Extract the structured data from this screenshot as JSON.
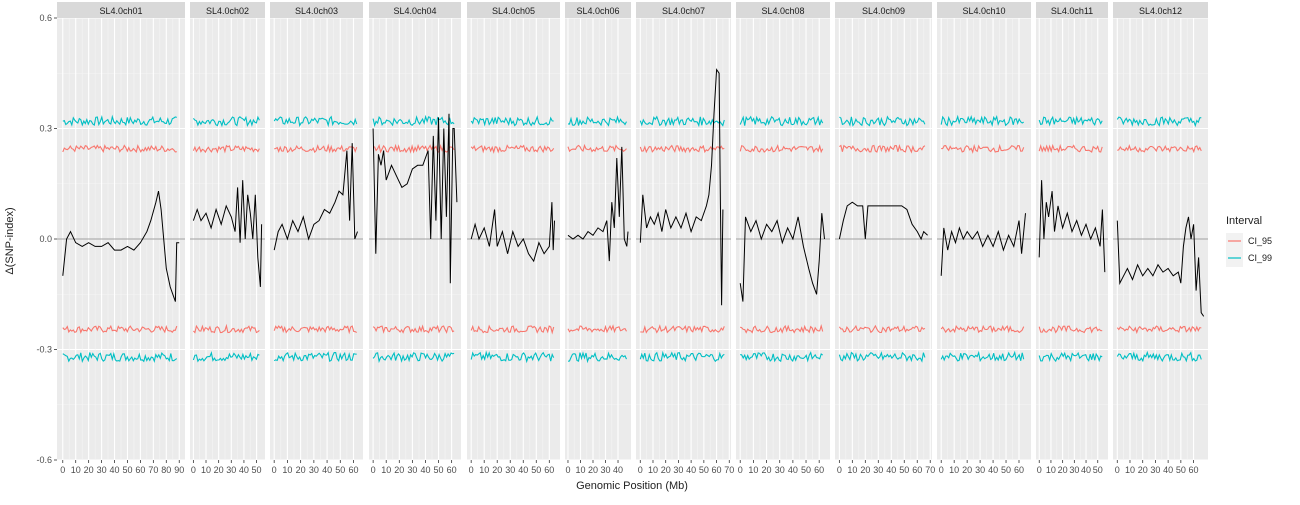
{
  "chart_data": {
    "type": "line",
    "ylabel": "Δ(SNP-index)",
    "xlabel": "Genomic Position (Mb)",
    "ylim": [
      -0.6,
      0.6
    ],
    "yticks": [
      -0.6,
      -0.3,
      0.0,
      0.3,
      0.6
    ],
    "ytick_labels": [
      "-0.6",
      "-0.3",
      "0.0",
      "0.3",
      "0.6"
    ],
    "grid": true,
    "legend": {
      "title": "Interval",
      "placement": "right",
      "items": [
        {
          "name": "CI_95",
          "color": "#F8766D"
        },
        {
          "name": "CI_99",
          "color": "#00BFC4"
        }
      ]
    },
    "colors": {
      "delta": "#000000",
      "ci95": "#F8766D",
      "ci99": "#00BFC4",
      "panel_bg": "#EBEBEB",
      "strip_bg": "#D9D9D9"
    },
    "chromosomes": [
      {
        "name": "SL4.0ch01",
        "length": 90,
        "ticks": [
          0,
          10,
          20,
          30,
          40,
          50,
          60,
          70,
          80,
          90
        ],
        "delta": [
          [
            0,
            -0.1
          ],
          [
            3,
            0.0
          ],
          [
            6,
            0.02
          ],
          [
            10,
            -0.01
          ],
          [
            15,
            -0.02
          ],
          [
            20,
            -0.01
          ],
          [
            25,
            -0.02
          ],
          [
            30,
            -0.02
          ],
          [
            35,
            -0.01
          ],
          [
            40,
            -0.03
          ],
          [
            45,
            -0.03
          ],
          [
            50,
            -0.02
          ],
          [
            55,
            -0.03
          ],
          [
            60,
            -0.01
          ],
          [
            65,
            0.02
          ],
          [
            68,
            0.05
          ],
          [
            72,
            0.1
          ],
          [
            74,
            0.13
          ],
          [
            76,
            0.08
          ],
          [
            78,
            0.0
          ],
          [
            80,
            -0.08
          ],
          [
            83,
            -0.13
          ],
          [
            86,
            -0.16
          ],
          [
            87,
            -0.17
          ],
          [
            88,
            -0.01
          ],
          [
            90,
            -0.01
          ]
        ],
        "ci95": 0.245,
        "ci99": 0.32
      },
      {
        "name": "SL4.0ch02",
        "length": 54,
        "ticks": [
          0,
          10,
          20,
          30,
          40,
          50
        ],
        "delta": [
          [
            0,
            0.05
          ],
          [
            3,
            0.08
          ],
          [
            6,
            0.05
          ],
          [
            10,
            0.07
          ],
          [
            14,
            0.03
          ],
          [
            18,
            0.08
          ],
          [
            22,
            0.04
          ],
          [
            26,
            0.09
          ],
          [
            30,
            0.06
          ],
          [
            33,
            0.02
          ],
          [
            35,
            0.14
          ],
          [
            37,
            -0.01
          ],
          [
            39,
            0.16
          ],
          [
            41,
            0.0
          ],
          [
            43,
            0.12
          ],
          [
            45,
            0.07
          ],
          [
            47,
            0.0
          ],
          [
            49,
            0.12
          ],
          [
            51,
            -0.05
          ],
          [
            53,
            -0.13
          ],
          [
            54,
            0.04
          ]
        ],
        "ci95": 0.245,
        "ci99": 0.32
      },
      {
        "name": "SL4.0ch03",
        "length": 64,
        "ticks": [
          0,
          10,
          20,
          30,
          40,
          50,
          60
        ],
        "delta": [
          [
            0,
            -0.03
          ],
          [
            3,
            0.02
          ],
          [
            6,
            0.04
          ],
          [
            10,
            0.0
          ],
          [
            14,
            0.05
          ],
          [
            18,
            0.02
          ],
          [
            22,
            0.06
          ],
          [
            26,
            0.0
          ],
          [
            30,
            0.04
          ],
          [
            34,
            0.05
          ],
          [
            38,
            0.08
          ],
          [
            42,
            0.07
          ],
          [
            46,
            0.1
          ],
          [
            49,
            0.13
          ],
          [
            52,
            0.12
          ],
          [
            55,
            0.24
          ],
          [
            57,
            0.05
          ],
          [
            59,
            0.26
          ],
          [
            61,
            0.0
          ],
          [
            63,
            0.02
          ]
        ],
        "ci95": 0.245,
        "ci99": 0.32
      },
      {
        "name": "SL4.0ch04",
        "length": 64,
        "ticks": [
          0,
          10,
          20,
          30,
          40,
          50,
          60
        ],
        "delta": [
          [
            0,
            0.3
          ],
          [
            2,
            -0.04
          ],
          [
            4,
            0.23
          ],
          [
            6,
            0.2
          ],
          [
            8,
            0.24
          ],
          [
            10,
            0.16
          ],
          [
            14,
            0.2
          ],
          [
            18,
            0.17
          ],
          [
            22,
            0.14
          ],
          [
            26,
            0.15
          ],
          [
            30,
            0.19
          ],
          [
            34,
            0.2
          ],
          [
            38,
            0.2
          ],
          [
            42,
            0.24
          ],
          [
            44,
            0.0
          ],
          [
            46,
            0.28
          ],
          [
            48,
            0.05
          ],
          [
            50,
            0.33
          ],
          [
            52,
            0.0
          ],
          [
            54,
            0.3
          ],
          [
            56,
            0.06
          ],
          [
            58,
            0.34
          ],
          [
            59,
            -0.12
          ],
          [
            61,
            0.3
          ],
          [
            62,
            0.3
          ],
          [
            64,
            0.1
          ]
        ],
        "ci95": 0.245,
        "ci99": 0.32
      },
      {
        "name": "SL4.0ch05",
        "length": 65,
        "ticks": [
          0,
          10,
          20,
          30,
          40,
          50,
          60
        ],
        "delta": [
          [
            0,
            0.0
          ],
          [
            3,
            0.04
          ],
          [
            6,
            0.0
          ],
          [
            10,
            0.03
          ],
          [
            14,
            -0.02
          ],
          [
            18,
            0.08
          ],
          [
            20,
            -0.02
          ],
          [
            24,
            0.02
          ],
          [
            28,
            -0.04
          ],
          [
            32,
            0.02
          ],
          [
            36,
            -0.02
          ],
          [
            40,
            0.0
          ],
          [
            44,
            -0.04
          ],
          [
            48,
            -0.06
          ],
          [
            52,
            -0.01
          ],
          [
            56,
            -0.04
          ],
          [
            60,
            -0.02
          ],
          [
            62,
            0.1
          ],
          [
            63,
            -0.03
          ],
          [
            64,
            0.05
          ]
        ],
        "ci95": 0.245,
        "ci99": 0.32
      },
      {
        "name": "SL4.0ch06",
        "length": 48,
        "ticks": [
          0,
          10,
          20,
          30,
          40
        ],
        "delta": [
          [
            0,
            0.01
          ],
          [
            4,
            0.0
          ],
          [
            8,
            0.01
          ],
          [
            12,
            0.0
          ],
          [
            16,
            0.02
          ],
          [
            20,
            0.01
          ],
          [
            24,
            0.03
          ],
          [
            28,
            0.02
          ],
          [
            31,
            0.05
          ],
          [
            33,
            -0.06
          ],
          [
            35,
            0.1
          ],
          [
            37,
            0.03
          ],
          [
            39,
            0.22
          ],
          [
            41,
            0.06
          ],
          [
            43,
            0.25
          ],
          [
            45,
            0.0
          ],
          [
            47,
            -0.02
          ],
          [
            48,
            0.02
          ]
        ],
        "ci95": 0.245,
        "ci99": 0.32
      },
      {
        "name": "SL4.0ch07",
        "length": 68,
        "ticks": [
          0,
          10,
          20,
          30,
          40,
          50,
          60,
          70
        ],
        "delta": [
          [
            0,
            -0.01
          ],
          [
            2,
            0.12
          ],
          [
            5,
            0.03
          ],
          [
            8,
            0.06
          ],
          [
            11,
            0.04
          ],
          [
            14,
            0.07
          ],
          [
            17,
            0.02
          ],
          [
            20,
            0.08
          ],
          [
            24,
            0.03
          ],
          [
            28,
            0.06
          ],
          [
            32,
            0.03
          ],
          [
            36,
            0.07
          ],
          [
            40,
            0.02
          ],
          [
            44,
            0.06
          ],
          [
            48,
            0.05
          ],
          [
            52,
            0.09
          ],
          [
            54,
            0.12
          ],
          [
            56,
            0.2
          ],
          [
            58,
            0.34
          ],
          [
            60,
            0.46
          ],
          [
            62,
            0.45
          ],
          [
            63,
            0.1
          ],
          [
            64,
            -0.18
          ],
          [
            65,
            0.08
          ]
        ],
        "ci95": 0.245,
        "ci99": 0.32
      },
      {
        "name": "SL4.0ch08",
        "length": 65,
        "ticks": [
          0,
          10,
          20,
          30,
          40,
          50,
          60
        ],
        "delta": [
          [
            0,
            -0.12
          ],
          [
            2,
            -0.17
          ],
          [
            4,
            0.06
          ],
          [
            8,
            0.02
          ],
          [
            12,
            0.05
          ],
          [
            16,
            0.0
          ],
          [
            20,
            0.04
          ],
          [
            24,
            0.02
          ],
          [
            28,
            0.05
          ],
          [
            32,
            -0.01
          ],
          [
            36,
            0.03
          ],
          [
            40,
            0.0
          ],
          [
            44,
            0.06
          ],
          [
            48,
            -0.02
          ],
          [
            52,
            -0.08
          ],
          [
            55,
            -0.12
          ],
          [
            58,
            -0.15
          ],
          [
            60,
            -0.06
          ],
          [
            62,
            0.07
          ],
          [
            64,
            0.0
          ]
        ],
        "ci95": 0.245,
        "ci99": 0.32
      },
      {
        "name": "SL4.0ch09",
        "length": 68,
        "ticks": [
          0,
          10,
          20,
          30,
          40,
          50,
          60,
          70
        ],
        "delta": [
          [
            0,
            0.0
          ],
          [
            3,
            0.05
          ],
          [
            6,
            0.09
          ],
          [
            10,
            0.1
          ],
          [
            14,
            0.09
          ],
          [
            18,
            0.09
          ],
          [
            20,
            0.0
          ],
          [
            22,
            0.09
          ],
          [
            30,
            0.09
          ],
          [
            40,
            0.09
          ],
          [
            48,
            0.09
          ],
          [
            52,
            0.08
          ],
          [
            56,
            0.04
          ],
          [
            60,
            0.02
          ],
          [
            63,
            0.0
          ],
          [
            65,
            0.02
          ],
          [
            68,
            0.01
          ]
        ],
        "ci95": 0.245,
        "ci99": 0.32
      },
      {
        "name": "SL4.0ch10",
        "length": 66,
        "ticks": [
          0,
          10,
          20,
          30,
          40,
          50,
          60
        ],
        "delta": [
          [
            0,
            -0.1
          ],
          [
            2,
            0.03
          ],
          [
            5,
            -0.03
          ],
          [
            8,
            0.02
          ],
          [
            11,
            -0.01
          ],
          [
            14,
            0.03
          ],
          [
            17,
            0.0
          ],
          [
            20,
            0.02
          ],
          [
            24,
            0.0
          ],
          [
            28,
            0.02
          ],
          [
            32,
            -0.02
          ],
          [
            36,
            0.01
          ],
          [
            40,
            -0.02
          ],
          [
            44,
            0.02
          ],
          [
            48,
            -0.03
          ],
          [
            52,
            0.01
          ],
          [
            56,
            -0.02
          ],
          [
            60,
            0.05
          ],
          [
            62,
            -0.04
          ],
          [
            65,
            0.07
          ]
        ],
        "ci95": 0.245,
        "ci99": 0.32
      },
      {
        "name": "SL4.0ch11",
        "length": 56,
        "ticks": [
          0,
          10,
          20,
          30,
          40,
          50
        ],
        "delta": [
          [
            0,
            -0.05
          ],
          [
            2,
            0.16
          ],
          [
            4,
            0.0
          ],
          [
            6,
            0.1
          ],
          [
            8,
            0.06
          ],
          [
            11,
            0.13
          ],
          [
            13,
            0.02
          ],
          [
            16,
            0.09
          ],
          [
            20,
            0.03
          ],
          [
            24,
            0.07
          ],
          [
            28,
            0.02
          ],
          [
            32,
            0.05
          ],
          [
            36,
            0.01
          ],
          [
            40,
            0.04
          ],
          [
            44,
            0.0
          ],
          [
            48,
            0.03
          ],
          [
            52,
            -0.02
          ],
          [
            54,
            0.08
          ],
          [
            56,
            -0.09
          ]
        ],
        "ci95": 0.245,
        "ci99": 0.32
      },
      {
        "name": "SL4.0ch12",
        "length": 68,
        "ticks": [
          0,
          10,
          20,
          30,
          40,
          50,
          60
        ],
        "delta": [
          [
            0,
            0.05
          ],
          [
            2,
            -0.12
          ],
          [
            5,
            -0.1
          ],
          [
            8,
            -0.08
          ],
          [
            12,
            -0.11
          ],
          [
            16,
            -0.07
          ],
          [
            20,
            -0.1
          ],
          [
            24,
            -0.08
          ],
          [
            28,
            -0.1
          ],
          [
            32,
            -0.07
          ],
          [
            36,
            -0.09
          ],
          [
            40,
            -0.08
          ],
          [
            44,
            -0.1
          ],
          [
            48,
            -0.09
          ],
          [
            50,
            -0.12
          ],
          [
            52,
            -0.02
          ],
          [
            54,
            0.03
          ],
          [
            56,
            0.06
          ],
          [
            58,
            0.0
          ],
          [
            60,
            0.04
          ],
          [
            62,
            -0.14
          ],
          [
            64,
            -0.05
          ],
          [
            66,
            -0.2
          ],
          [
            68,
            -0.21
          ]
        ],
        "ci95": 0.245,
        "ci99": 0.32
      }
    ]
  }
}
